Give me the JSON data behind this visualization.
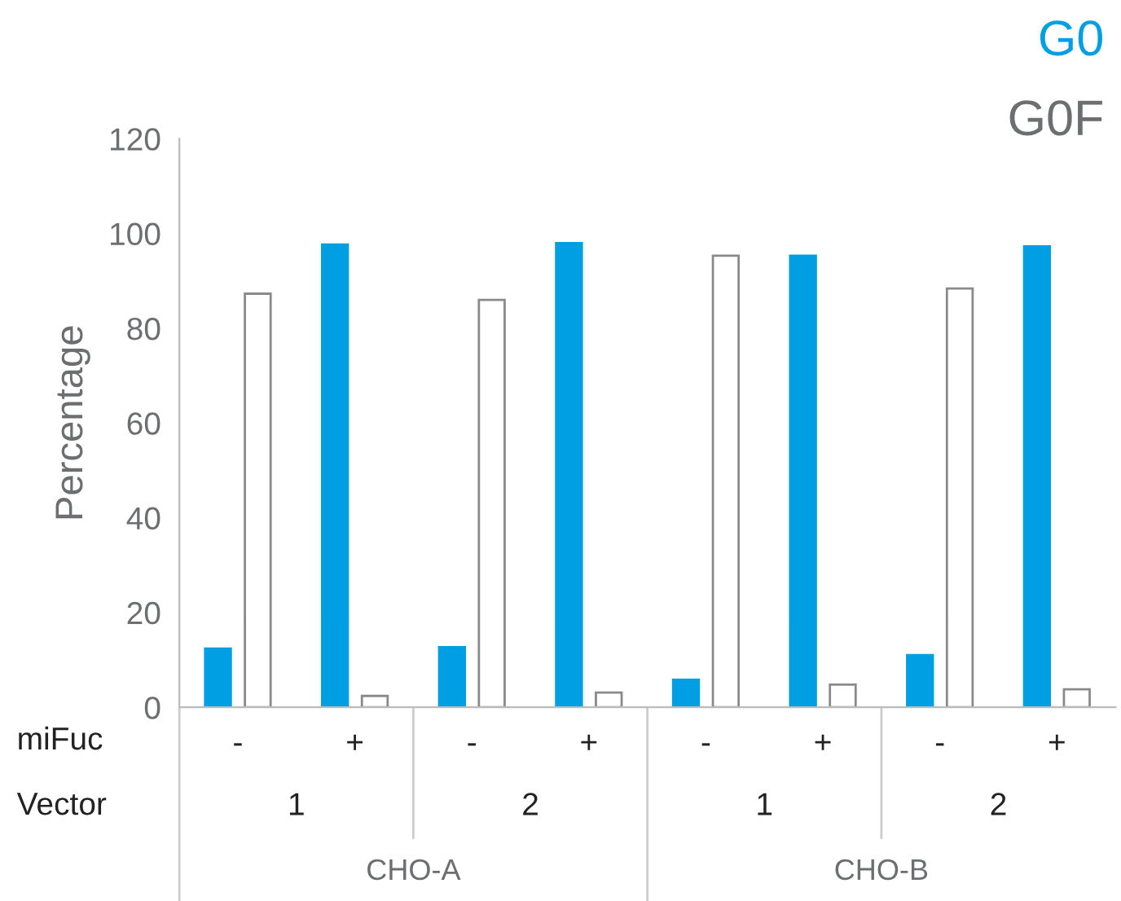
{
  "chart_data": {
    "type": "bar",
    "ylabel": "Percentage",
    "categories": [
      "-",
      "+",
      "-",
      "+",
      "-",
      "+",
      "-",
      "+"
    ],
    "series": [
      {
        "name": "G0",
        "color": "#009fe3",
        "values": [
          12.4,
          97.7,
          12.7,
          98,
          5.8,
          95.3,
          11,
          97.3
        ]
      },
      {
        "name": "G0F",
        "color": "#ffffff",
        "values": [
          87.3,
          2.4,
          86,
          3.1,
          95.3,
          4.8,
          88.4,
          3.8
        ]
      }
    ],
    "annotations": [
      "miFuc",
      "Vector",
      "1",
      "2",
      "1",
      "2",
      "CHO-A",
      "CHO-B"
    ],
    "ylim": [
      0,
      120
    ],
    "yticks": [
      0,
      20,
      40,
      60,
      80,
      100,
      120
    ],
    "legend": "top right",
    "grid": false
  }
}
